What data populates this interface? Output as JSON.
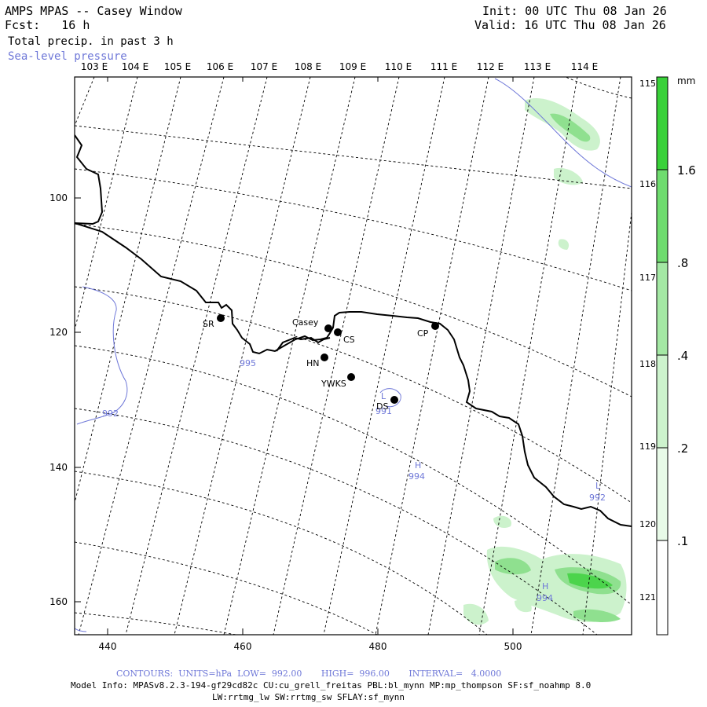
{
  "header": {
    "title": "AMPS MPAS -- Casey Window",
    "forecast": "Fcst:   16 h",
    "field": "Total precip. in past 3 h",
    "overlay": "Sea-level pressure",
    "init": "Init: 00 UTC Thu 08 Jan 26",
    "valid": "Valid: 16 UTC Thu 08 Jan 26"
  },
  "map": {
    "top_longitudes": [
      "103 E",
      "104 E",
      "105 E",
      "106 E",
      "107 E",
      "108 E",
      "109 E",
      "110 E",
      "111 E",
      "112 E",
      "113 E",
      "114 E"
    ],
    "right_longitudes": [
      "115 E",
      "116 E",
      "117 E",
      "118 E",
      "119 E",
      "120 E",
      "121 E"
    ],
    "x_ticks": [
      "440",
      "460",
      "480",
      "500"
    ],
    "y_ticks": [
      "100",
      "120",
      "140",
      "160"
    ],
    "stations": [
      {
        "id": "SR",
        "label": "SR"
      },
      {
        "id": "casey",
        "label": "Casey"
      },
      {
        "id": "CS",
        "label": "CS"
      },
      {
        "id": "HN",
        "label": "HN"
      },
      {
        "id": "YWKS",
        "label": "YWKS"
      },
      {
        "id": "DS",
        "label": "DS"
      },
      {
        "id": "CP",
        "label": "CP"
      }
    ],
    "pressure_labels": [
      "995",
      "992",
      "991",
      "H",
      "994",
      "L",
      "992",
      "H",
      "994",
      "L"
    ],
    "colors": {
      "contour": "#6f78d8",
      "precip_light": "#ccf2cc",
      "precip_mid": "#8fe08f",
      "precip_dark": "#4cd44c"
    }
  },
  "colorbar": {
    "unit": "mm",
    "labels": [
      "1.6",
      ".8",
      ".4",
      ".2",
      ".1"
    ],
    "colors": [
      "#39d139",
      "#6fdc6f",
      "#a4e8a4",
      "#cdf3cd",
      "#e8fae8",
      "#ffffff"
    ]
  },
  "footer": {
    "contours": "CONTOURS:  UNITS=hPa  LOW=  992.00       HIGH=  996.00       INTERVAL=   4.0000",
    "model_info": "Model Info: MPASv8.2.3-194-gf29cd82c CU:cu_grell_freitas PBL:bl_mynn MP:mp_thompson SF:sf_noahmp 8.0",
    "model_info2": "LW:rrtmg_lw SW:rrtmg_sw SFLAY:sf_mynn"
  }
}
